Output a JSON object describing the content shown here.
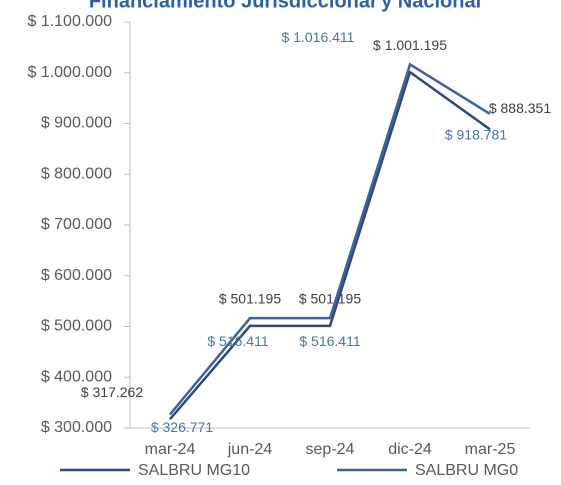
{
  "chart_data": {
    "type": "line",
    "title": "Financiamiento Jurisdiccional y Nacional",
    "categories": [
      "mar-24",
      "jun-24",
      "sep-24",
      "dic-24",
      "mar-25"
    ],
    "series": [
      {
        "name": "SALBRU MG10",
        "color": "#2e4a7a",
        "values": [
          317262,
          501195,
          501195,
          1001195,
          888351
        ],
        "value_labels": [
          "$ 317.262",
          "$ 501.195",
          "$ 501.195",
          "$ 1.001.195",
          "$ 888.351"
        ]
      },
      {
        "name": "SALBRU MG0",
        "color": "#3f639a",
        "values": [
          326771,
          516411,
          516411,
          1016411,
          918781
        ],
        "value_labels": [
          "$ 326.771",
          "$ 516.411",
          "$ 516.411",
          "$ 1.016.411",
          "$ 918.781"
        ]
      }
    ],
    "ylim": [
      300000,
      1100000
    ],
    "yticks": [
      {
        "value": 300000,
        "label": "$ 300.000"
      },
      {
        "value": 400000,
        "label": "$ 400.000"
      },
      {
        "value": 500000,
        "label": "$ 500.000"
      },
      {
        "value": 600000,
        "label": "$ 600.000"
      },
      {
        "value": 700000,
        "label": "$ 700.000"
      },
      {
        "value": 800000,
        "label": "$ 800.000"
      },
      {
        "value": 900000,
        "label": "$ 900.000"
      },
      {
        "value": 1000000,
        "label": "$ 1.000.000"
      },
      {
        "value": 1100000,
        "label": "$ 1.100.000"
      }
    ],
    "grid": false,
    "legend": "bottom"
  }
}
